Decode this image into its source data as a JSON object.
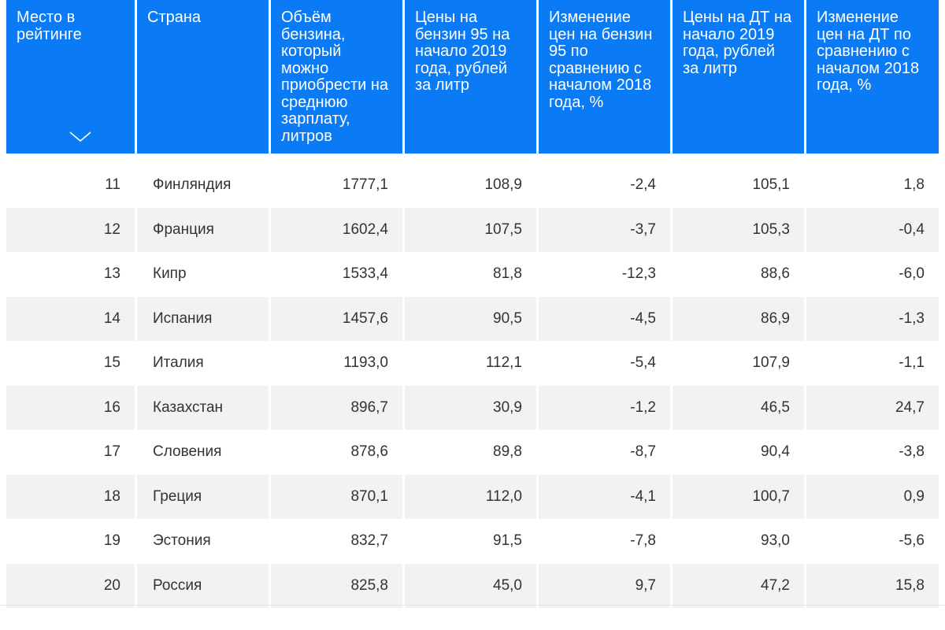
{
  "table": {
    "headers": [
      "Место в рейтинге",
      "Страна",
      "Объём бензина, который можно приобрести на среднюю зарплату, литров",
      "Цены на бензин 95 на начало 2019 года, рублей за литр",
      "Изменение цен на бензин 95 по сравнению с началом 2018 года, %",
      "Цены на ДТ на начало 2019 года, рублей за литр",
      "Изменение цен на ДТ по сравнению с началом 2018 года, %"
    ],
    "sort_icon": "chevron-down-icon",
    "rows": [
      [
        "11",
        "Финляндия",
        "1777,1",
        "108,9",
        "-2,4",
        "105,1",
        "1,8"
      ],
      [
        "12",
        "Франция",
        "1602,4",
        "107,5",
        "-3,7",
        "105,3",
        "-0,4"
      ],
      [
        "13",
        "Кипр",
        "1533,4",
        "81,8",
        "-12,3",
        "88,6",
        "-6,0"
      ],
      [
        "14",
        "Испания",
        "1457,6",
        "90,5",
        "-4,5",
        "86,9",
        "-1,3"
      ],
      [
        "15",
        "Италия",
        "1193,0",
        "112,1",
        "-5,4",
        "107,9",
        "-1,1"
      ],
      [
        "16",
        "Казахстан",
        "896,7",
        "30,9",
        "-1,2",
        "46,5",
        "24,7"
      ],
      [
        "17",
        "Словения",
        "878,6",
        "89,8",
        "-8,7",
        "90,4",
        "-3,8"
      ],
      [
        "18",
        "Греция",
        "870,1",
        "112,0",
        "-4,1",
        "100,7",
        "0,9"
      ],
      [
        "19",
        "Эстония",
        "832,7",
        "91,5",
        "-7,8",
        "93,0",
        "-5,6"
      ],
      [
        "20",
        "Россия",
        "825,8",
        "45,0",
        "9,7",
        "47,2",
        "15,8"
      ]
    ]
  },
  "colors": {
    "header_bg": "#0a7af5",
    "header_text": "#ffffff",
    "alt_row_bg": "#f2f2f2"
  }
}
